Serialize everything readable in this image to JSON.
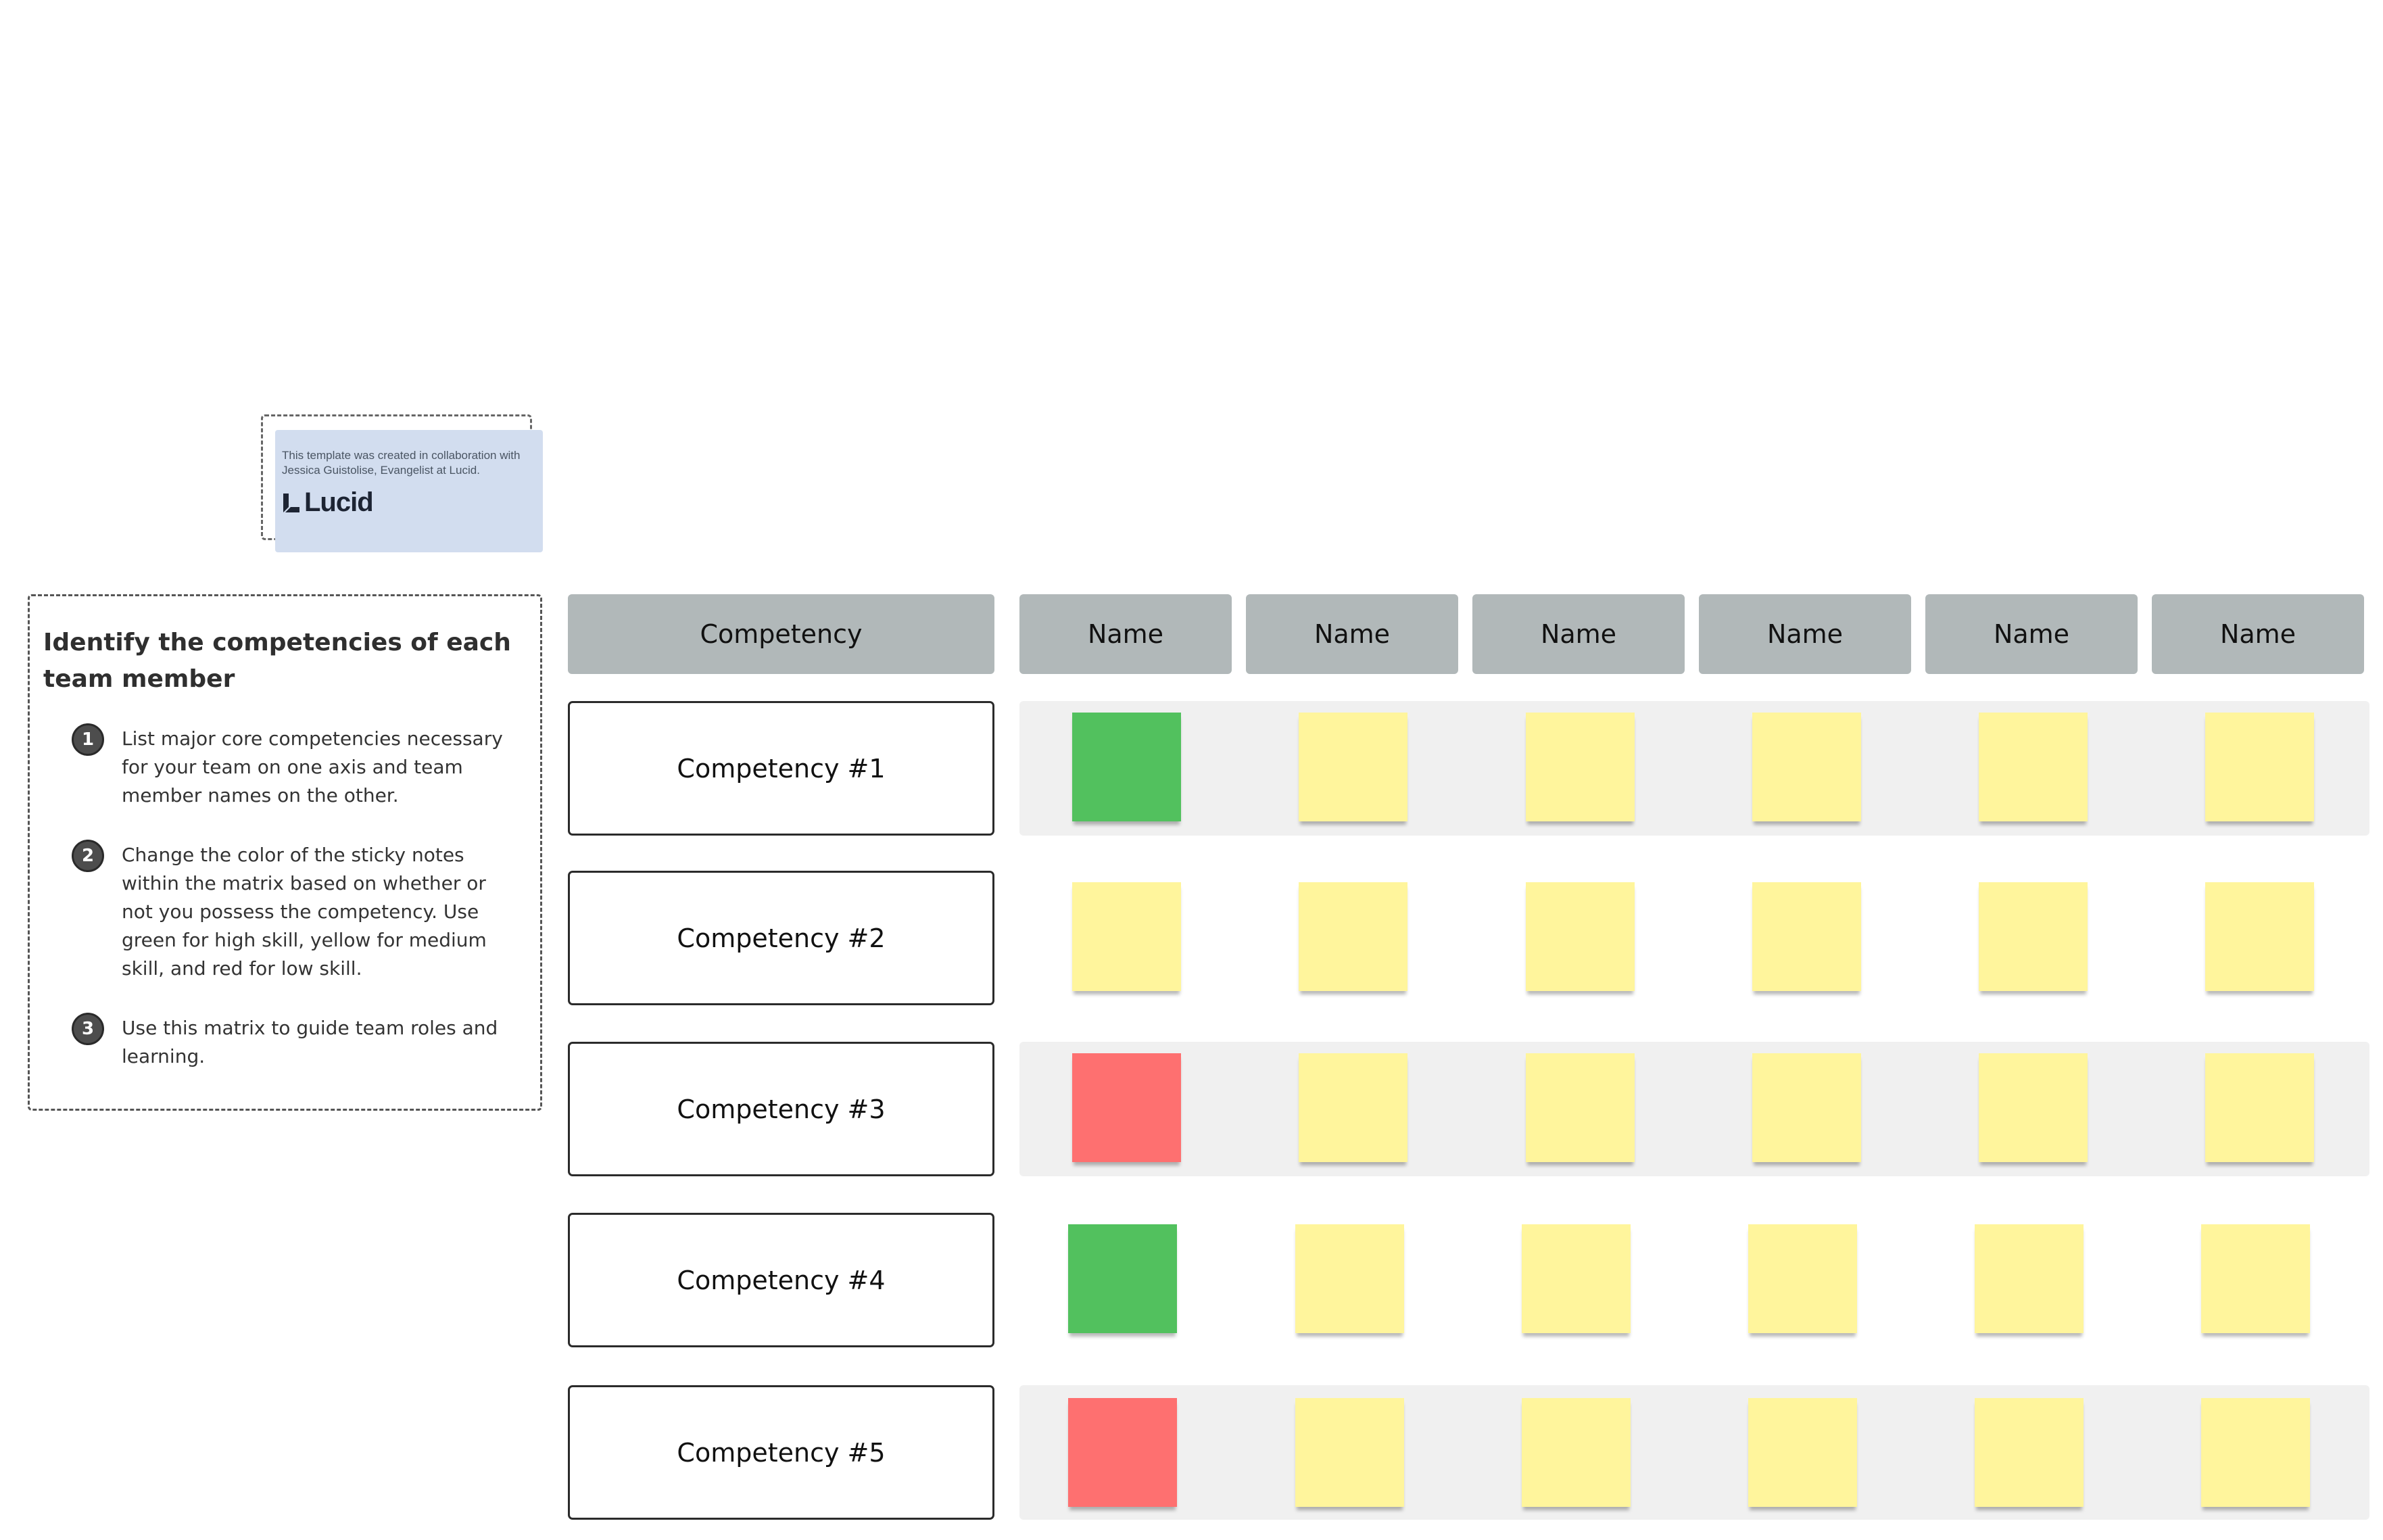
{
  "attribution": {
    "text": "This template was created in collaboration with Jessica Guistolise, Evangelist at Lucid.",
    "logo_text": "Lucid",
    "logo_icon": "lucid-logo-icon"
  },
  "instructions": {
    "title": "Identify the competencies of each team member",
    "steps": [
      {
        "number": "1",
        "text": "List major core competencies necessary for your team on one axis and team member names on the other."
      },
      {
        "number": "2",
        "text": "Change the color of the sticky notes within the matrix based on whether or not you possess the competency. Use green for high skill, yellow for medium skill, and red for low skill."
      },
      {
        "number": "3",
        "text": "Use this matrix to guide team roles and learning."
      }
    ]
  },
  "matrix": {
    "competency_header": "Competency",
    "name_headers": [
      "Name",
      "Name",
      "Name",
      "Name",
      "Name",
      "Name"
    ],
    "rows": [
      {
        "label": "Competency #1",
        "notes": [
          "green",
          "yellow",
          "yellow",
          "yellow",
          "yellow",
          "yellow"
        ]
      },
      {
        "label": "Competency #2",
        "notes": [
          "yellow",
          "yellow",
          "yellow",
          "yellow",
          "yellow",
          "yellow"
        ]
      },
      {
        "label": "Competency #3",
        "notes": [
          "red",
          "yellow",
          "yellow",
          "yellow",
          "yellow",
          "yellow"
        ]
      },
      {
        "label": "Competency #4",
        "notes": [
          "green",
          "yellow",
          "yellow",
          "yellow",
          "yellow",
          "yellow"
        ]
      },
      {
        "label": "Competency #5",
        "notes": [
          "red",
          "yellow",
          "yellow",
          "yellow",
          "yellow",
          "yellow"
        ]
      }
    ]
  },
  "colors": {
    "green": "#52c15e",
    "yellow": "#fff59c",
    "red": "#fe7070",
    "header_fill": "#b1b8b9",
    "band_fill": "#f0f0f0",
    "credit_fill": "#d2ddef"
  }
}
